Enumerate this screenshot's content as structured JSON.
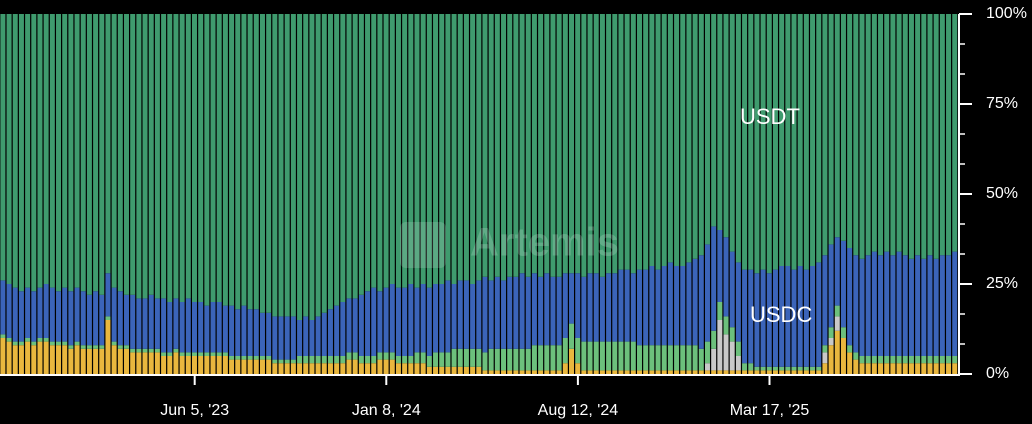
{
  "chart_data": {
    "type": "stacked_bar_100",
    "watermark": "Artemis",
    "annotations": [
      "USDT",
      "USDC"
    ],
    "categories": [
      null,
      null,
      null,
      null,
      null,
      null,
      null,
      null,
      null,
      null,
      null,
      null,
      null,
      null,
      null,
      null,
      null,
      null,
      null,
      null,
      null,
      null,
      null,
      null,
      null,
      null,
      null,
      null,
      null,
      null,
      null,
      "Jun 5, '23",
      null,
      null,
      null,
      null,
      null,
      null,
      null,
      null,
      null,
      null,
      null,
      null,
      null,
      null,
      null,
      null,
      null,
      null,
      null,
      null,
      null,
      null,
      null,
      null,
      null,
      null,
      null,
      null,
      null,
      null,
      "Jan 8, '24",
      null,
      null,
      null,
      null,
      null,
      null,
      null,
      null,
      null,
      null,
      null,
      null,
      null,
      null,
      null,
      null,
      null,
      null,
      null,
      null,
      null,
      null,
      null,
      null,
      null,
      null,
      null,
      null,
      null,
      null,
      "Aug 12, '24",
      null,
      null,
      null,
      null,
      null,
      null,
      null,
      null,
      null,
      null,
      null,
      null,
      null,
      null,
      null,
      null,
      null,
      null,
      null,
      null,
      null,
      null,
      null,
      null,
      null,
      null,
      null,
      null,
      null,
      null,
      "Mar 17, '25",
      null,
      null,
      null,
      null,
      null,
      null,
      null,
      null,
      null,
      null,
      null,
      null,
      null,
      null,
      null,
      null,
      null,
      null,
      null,
      null,
      null,
      null,
      null,
      null,
      null,
      null,
      null,
      null,
      null,
      null
    ],
    "ylim": [
      0,
      100
    ],
    "yticks": [
      {
        "value": 0,
        "label": "0%"
      },
      {
        "value": 25,
        "label": "25%"
      },
      {
        "value": 50,
        "label": "50%"
      },
      {
        "value": 75,
        "label": "75%"
      },
      {
        "value": 100,
        "label": "100%"
      }
    ],
    "series": [
      {
        "color": "#e9b73e",
        "values": [
          10,
          9,
          8,
          8,
          9,
          8,
          9,
          9,
          8,
          8,
          8,
          7,
          8,
          7,
          7,
          7,
          7,
          15,
          8,
          7,
          7,
          6,
          6,
          6,
          6,
          6,
          5,
          5,
          6,
          5,
          5,
          5,
          5,
          5,
          5,
          5,
          5,
          4,
          4,
          4,
          4,
          4,
          4,
          4,
          3,
          3,
          3,
          3,
          3,
          3,
          3,
          3,
          3,
          3,
          3,
          3,
          4,
          4,
          3,
          3,
          3,
          4,
          4,
          4,
          3,
          3,
          3,
          3,
          3,
          2,
          2,
          2,
          2,
          2,
          2,
          2,
          2,
          2,
          1,
          1,
          1,
          1,
          1,
          1,
          1,
          1,
          1,
          1,
          1,
          1,
          1,
          3,
          7,
          3,
          1,
          1,
          1,
          1,
          1,
          1,
          1,
          1,
          1,
          1,
          1,
          1,
          1,
          1,
          1,
          1,
          1,
          1,
          1,
          1,
          1,
          1,
          1,
          1,
          1,
          1,
          1,
          1,
          1,
          1,
          1,
          1,
          1,
          1,
          1,
          1,
          1,
          1,
          1,
          3,
          8,
          12,
          10,
          6,
          4,
          3,
          3,
          3,
          3,
          3,
          3,
          3,
          3,
          3,
          3,
          3,
          3,
          3,
          3,
          3,
          3
        ]
      },
      {
        "color": "#c9c9c9",
        "values": [
          0,
          0,
          0,
          0,
          0,
          0,
          0,
          0,
          0,
          0,
          0,
          0,
          0,
          0,
          0,
          0,
          0,
          0,
          0,
          0,
          0,
          0,
          0,
          0,
          0,
          0,
          0,
          0,
          0,
          0,
          0,
          0,
          0,
          0,
          0,
          0,
          0,
          0,
          0,
          0,
          0,
          0,
          0,
          0,
          0,
          0,
          0,
          0,
          0,
          0,
          0,
          0,
          0,
          0,
          0,
          0,
          0,
          0,
          0,
          0,
          0,
          0,
          0,
          0,
          0,
          0,
          0,
          0,
          0,
          0,
          0,
          0,
          0,
          0,
          0,
          0,
          0,
          0,
          0,
          0,
          0,
          0,
          0,
          0,
          0,
          0,
          0,
          0,
          0,
          0,
          0,
          0,
          0,
          0,
          0,
          0,
          0,
          0,
          0,
          0,
          0,
          0,
          0,
          0,
          0,
          0,
          0,
          0,
          0,
          0,
          0,
          0,
          0,
          0,
          2,
          6,
          14,
          10,
          8,
          4,
          0,
          0,
          0,
          0,
          0,
          0,
          0,
          0,
          0,
          0,
          0,
          0,
          0,
          3,
          2,
          4,
          0,
          0,
          0,
          0,
          0,
          0,
          0,
          0,
          0,
          0,
          0,
          0,
          0,
          0,
          0,
          0,
          0,
          0,
          0
        ]
      },
      {
        "color": "#6cc07c",
        "values": [
          1,
          1,
          1,
          1,
          1,
          1,
          1,
          1,
          1,
          1,
          1,
          1,
          1,
          1,
          1,
          1,
          1,
          1,
          1,
          1,
          1,
          1,
          1,
          1,
          1,
          1,
          1,
          1,
          1,
          1,
          1,
          1,
          1,
          1,
          1,
          1,
          1,
          1,
          1,
          1,
          1,
          1,
          1,
          1,
          1,
          1,
          1,
          1,
          2,
          2,
          2,
          2,
          2,
          2,
          2,
          2,
          2,
          2,
          2,
          2,
          2,
          2,
          2,
          2,
          2,
          2,
          2,
          3,
          3,
          3,
          4,
          4,
          4,
          5,
          5,
          5,
          5,
          5,
          5,
          6,
          6,
          6,
          6,
          6,
          6,
          6,
          7,
          7,
          7,
          7,
          7,
          7,
          7,
          7,
          8,
          8,
          8,
          8,
          8,
          8,
          8,
          8,
          8,
          7,
          7,
          7,
          7,
          7,
          7,
          7,
          7,
          7,
          7,
          6,
          6,
          5,
          5,
          5,
          4,
          4,
          2,
          2,
          1,
          1,
          1,
          1,
          1,
          1,
          1,
          1,
          1,
          1,
          1,
          2,
          3,
          3,
          3,
          2,
          2,
          2,
          2,
          2,
          2,
          2,
          2,
          2,
          2,
          2,
          2,
          2,
          2,
          2,
          2,
          2,
          2
        ]
      },
      {
        "name": "USDC",
        "color": "#3b64b9",
        "values": [
          15,
          15,
          15,
          14,
          14,
          14,
          14,
          15,
          15,
          14,
          15,
          15,
          15,
          15,
          14,
          15,
          14,
          12,
          15,
          15,
          14,
          15,
          14,
          14,
          15,
          14,
          15,
          14,
          14,
          14,
          15,
          14,
          14,
          13,
          14,
          14,
          13,
          14,
          13,
          14,
          13,
          13,
          12,
          12,
          12,
          12,
          12,
          12,
          10,
          11,
          10,
          11,
          12,
          13,
          14,
          15,
          15,
          15,
          17,
          18,
          19,
          17,
          18,
          19,
          19,
          19,
          20,
          18,
          19,
          19,
          19,
          19,
          20,
          18,
          19,
          19,
          18,
          19,
          21,
          19,
          20,
          19,
          20,
          20,
          21,
          20,
          20,
          19,
          20,
          19,
          19,
          18,
          14,
          18,
          18,
          19,
          19,
          18,
          19,
          19,
          20,
          20,
          19,
          21,
          21,
          22,
          21,
          22,
          23,
          22,
          22,
          23,
          24,
          26,
          27,
          29,
          20,
          22,
          21,
          22,
          26,
          26,
          26,
          27,
          26,
          27,
          28,
          28,
          27,
          28,
          27,
          28,
          29,
          25,
          23,
          19,
          24,
          27,
          27,
          27,
          28,
          29,
          28,
          29,
          28,
          29,
          28,
          27,
          28,
          27,
          28,
          27,
          28,
          28,
          29
        ]
      },
      {
        "name": "USDT",
        "color": "#3f9b6e",
        "values": [
          74,
          75,
          76,
          77,
          76,
          77,
          76,
          75,
          76,
          77,
          76,
          77,
          76,
          77,
          78,
          77,
          78,
          72,
          76,
          77,
          78,
          78,
          79,
          79,
          78,
          79,
          79,
          80,
          79,
          80,
          79,
          80,
          80,
          81,
          80,
          80,
          81,
          81,
          82,
          81,
          82,
          82,
          83,
          83,
          84,
          84,
          84,
          84,
          85,
          84,
          85,
          84,
          83,
          82,
          81,
          80,
          79,
          79,
          78,
          77,
          76,
          77,
          76,
          75,
          76,
          76,
          75,
          76,
          75,
          76,
          75,
          75,
          74,
          75,
          74,
          74,
          75,
          74,
          73,
          74,
          73,
          74,
          73,
          73,
          72,
          73,
          72,
          73,
          72,
          73,
          73,
          72,
          72,
          72,
          73,
          72,
          72,
          73,
          72,
          72,
          71,
          71,
          72,
          71,
          71,
          70,
          71,
          70,
          69,
          70,
          70,
          69,
          68,
          67,
          64,
          59,
          60,
          62,
          66,
          69,
          71,
          71,
          72,
          71,
          72,
          71,
          70,
          70,
          71,
          70,
          71,
          70,
          69,
          67,
          64,
          62,
          63,
          65,
          67,
          68,
          67,
          66,
          67,
          66,
          67,
          66,
          67,
          68,
          67,
          68,
          67,
          68,
          67,
          67,
          66
        ]
      }
    ]
  }
}
